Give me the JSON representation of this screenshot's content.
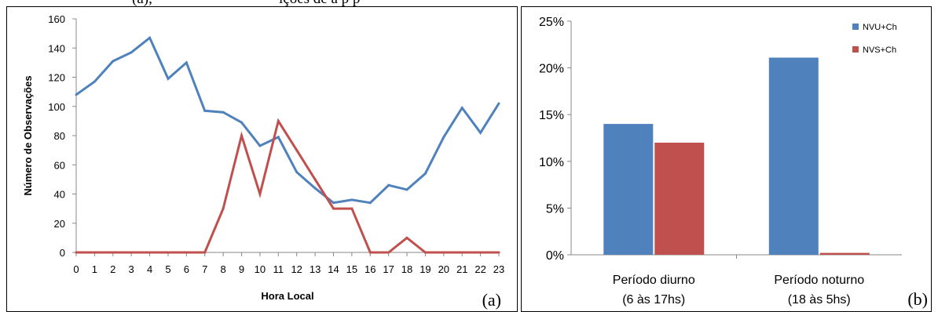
{
  "header_fragment": {
    "left": "(a),",
    "right": "ições de  a      p      p"
  },
  "chart_data": [
    {
      "type": "line",
      "panel_label": "(a)",
      "xlabel": "Hora Local",
      "ylabel": "Número de Observações",
      "x": [
        "0",
        "1",
        "2",
        "3",
        "4",
        "5",
        "6",
        "7",
        "8",
        "9",
        "10",
        "11",
        "12",
        "13",
        "14",
        "15",
        "16",
        "17",
        "18",
        "19",
        "20",
        "21",
        "22",
        "23"
      ],
      "ylim": [
        0,
        160
      ],
      "yticks": [
        "0",
        "20",
        "40",
        "60",
        "80",
        "100",
        "120",
        "140",
        "160"
      ],
      "grid": false,
      "series": [
        {
          "color": "#4f81bd",
          "values": [
            108,
            117,
            131,
            137,
            147,
            119,
            130,
            97,
            96,
            89,
            73,
            79,
            55,
            44,
            34,
            36,
            34,
            46,
            43,
            54,
            79,
            99,
            82,
            102
          ]
        },
        {
          "color": "#c0504d",
          "values": [
            0,
            0,
            0,
            0,
            0,
            0,
            0,
            0,
            30,
            80,
            40,
            90,
            70,
            50,
            30,
            30,
            0,
            0,
            10,
            0,
            0,
            0,
            0,
            0
          ]
        }
      ]
    },
    {
      "type": "bar",
      "panel_label": "(b)",
      "categories": [
        [
          "Período diurno",
          "(6 às 17hs)"
        ],
        [
          "Período noturno",
          "(18 às 5hs)"
        ]
      ],
      "ylim": [
        0,
        25
      ],
      "yticks": [
        "0%",
        "5%",
        "10%",
        "15%",
        "20%",
        "25%"
      ],
      "grid": false,
      "legend_position": "top-right",
      "series": [
        {
          "name": "NVU+Ch",
          "color": "#4f81bd",
          "values": [
            14.0,
            21.1
          ]
        },
        {
          "name": "NVS+Ch",
          "color": "#c0504d",
          "values": [
            12.0,
            0.2
          ]
        }
      ]
    }
  ]
}
